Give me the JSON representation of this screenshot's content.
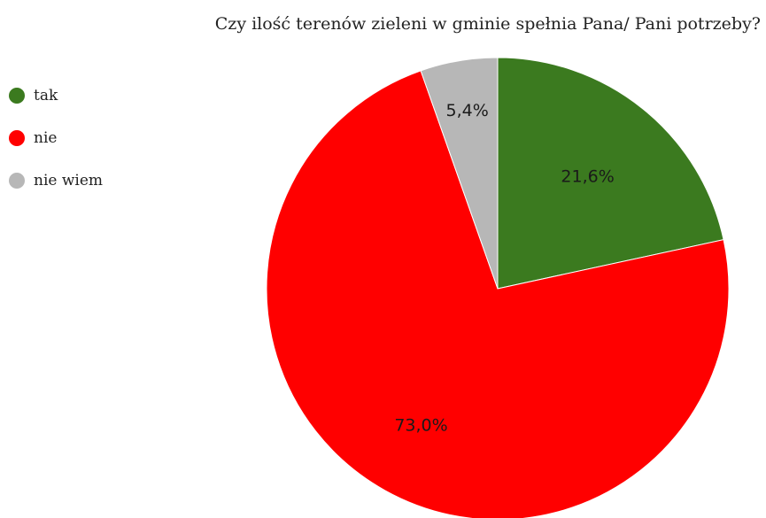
{
  "chart_data": {
    "type": "pie",
    "title": "Czy ilość terenów zieleni w gminie spełnia Pana/ Pani potrzeby?",
    "legend_position": "left",
    "slices": [
      {
        "label": "tak",
        "value": 21.6,
        "value_label": "21,6%",
        "color": "#3b7a1f"
      },
      {
        "label": "nie",
        "value": 73.0,
        "value_label": "73,0%",
        "color": "#ff0000"
      },
      {
        "label": "nie wiem",
        "value": 5.4,
        "value_label": "5,4%",
        "color": "#b7b7b7"
      }
    ]
  }
}
